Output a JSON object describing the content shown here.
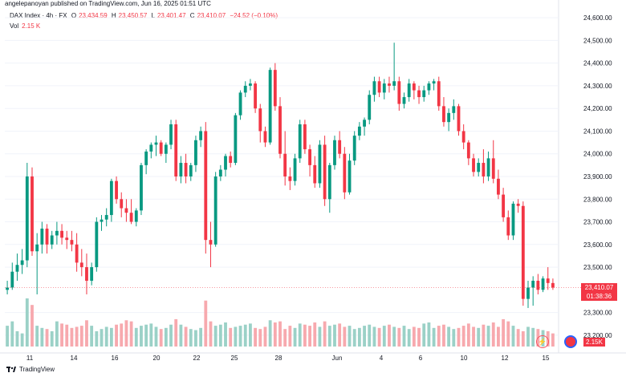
{
  "header": {
    "publisher_line": "angelepanoyan published on TradingView.com, Jun 16, 2025 01:51 UTC",
    "symbol": "DAX Index · 4h · FX",
    "open_label": "O",
    "open": "23,434.59",
    "high_label": "H",
    "high": "23,450.57",
    "low_label": "L",
    "low": "23,401.47",
    "close_label": "C",
    "close": "23,410.07",
    "change": "−24.52 (−0.10%)",
    "vol_label": "Vol",
    "vol": "2.15 K"
  },
  "price_tag": {
    "price": "23,410.07",
    "countdown": "01:38:36"
  },
  "vol_tag": "2.15K",
  "footer": {
    "brand": "TradingView"
  },
  "colors": {
    "up": "#089981",
    "down": "#f23645",
    "up_vol": "#9bd1c7",
    "down_vol": "#f7a9ae"
  },
  "chart_data": {
    "type": "candlestick",
    "ylim": [
      23150,
      24650
    ],
    "y_ticks": [
      "24,600.00",
      "24,500.00",
      "24,400.00",
      "24,300.00",
      "24,200.00",
      "24,100.00",
      "24,000.00",
      "23,900.00",
      "23,800.00",
      "23,700.00",
      "23,600.00",
      "23,500.00",
      "23,300.00",
      "23,200.00"
    ],
    "x_ticks": [
      "11",
      "14",
      "16",
      "20",
      "22",
      "25",
      "28",
      "Jun",
      "4",
      "6",
      "10",
      "12",
      "15"
    ],
    "ohlc": [
      [
        23400,
        23440,
        23380,
        23410
      ],
      [
        23410,
        23520,
        23400,
        23480
      ],
      [
        23480,
        23560,
        23440,
        23510
      ],
      [
        23510,
        23580,
        23470,
        23530
      ],
      [
        23530,
        23960,
        23500,
        23900
      ],
      [
        23900,
        23940,
        23550,
        23570
      ],
      [
        23570,
        23650,
        23380,
        23600
      ],
      [
        23600,
        23700,
        23560,
        23670
      ],
      [
        23670,
        23690,
        23560,
        23600
      ],
      [
        23600,
        23660,
        23580,
        23640
      ],
      [
        23640,
        23700,
        23600,
        23660
      ],
      [
        23660,
        23690,
        23600,
        23630
      ],
      [
        23630,
        23660,
        23580,
        23620
      ],
      [
        23620,
        23660,
        23570,
        23600
      ],
      [
        23600,
        23650,
        23480,
        23520
      ],
      [
        23520,
        23580,
        23460,
        23500
      ],
      [
        23500,
        23560,
        23380,
        23440
      ],
      [
        23440,
        23520,
        23420,
        23500
      ],
      [
        23500,
        23720,
        23480,
        23700
      ],
      [
        23700,
        23730,
        23660,
        23710
      ],
      [
        23710,
        23760,
        23680,
        23730
      ],
      [
        23730,
        23890,
        23700,
        23880
      ],
      [
        23880,
        23900,
        23780,
        23800
      ],
      [
        23800,
        23830,
        23720,
        23760
      ],
      [
        23760,
        23800,
        23700,
        23740
      ],
      [
        23740,
        23800,
        23690,
        23700
      ],
      [
        23700,
        23760,
        23680,
        23750
      ],
      [
        23750,
        23960,
        23730,
        23950
      ],
      [
        23950,
        24020,
        23910,
        24010
      ],
      [
        24010,
        24050,
        23980,
        24040
      ],
      [
        24040,
        24080,
        23990,
        24050
      ],
      [
        24050,
        24060,
        23990,
        24000
      ],
      [
        24000,
        24050,
        23960,
        24040
      ],
      [
        24040,
        24150,
        24020,
        24130
      ],
      [
        24130,
        24150,
        23880,
        23900
      ],
      [
        23900,
        23990,
        23870,
        23960
      ],
      [
        23960,
        24000,
        23870,
        23900
      ],
      [
        23900,
        23960,
        23880,
        23950
      ],
      [
        23950,
        24080,
        23920,
        24060
      ],
      [
        24060,
        24120,
        24030,
        24100
      ],
      [
        24100,
        24140,
        23560,
        23620
      ],
      [
        23620,
        23700,
        23500,
        23600
      ],
      [
        23600,
        23920,
        23590,
        23900
      ],
      [
        23900,
        23950,
        23880,
        23930
      ],
      [
        23930,
        24000,
        23900,
        23990
      ],
      [
        23990,
        24010,
        23940,
        23960
      ],
      [
        23960,
        24180,
        23950,
        24170
      ],
      [
        24170,
        24280,
        24150,
        24270
      ],
      [
        24270,
        24320,
        24250,
        24300
      ],
      [
        24300,
        24330,
        24280,
        24310
      ],
      [
        24310,
        24320,
        24180,
        24200
      ],
      [
        24200,
        24220,
        24050,
        24100
      ],
      [
        24100,
        24120,
        24030,
        24050
      ],
      [
        24050,
        24380,
        24040,
        24370
      ],
      [
        24370,
        24400,
        24190,
        24210
      ],
      [
        24210,
        24250,
        23980,
        24000
      ],
      [
        24000,
        24100,
        23860,
        23900
      ],
      [
        23900,
        23940,
        23840,
        23880
      ],
      [
        23880,
        24000,
        23860,
        23980
      ],
      [
        23980,
        24150,
        23960,
        24130
      ],
      [
        24130,
        24150,
        24000,
        24020
      ],
      [
        24020,
        24040,
        23900,
        23950
      ],
      [
        23950,
        23990,
        23850,
        23870
      ],
      [
        23870,
        24060,
        23850,
        24040
      ],
      [
        24040,
        24080,
        23770,
        23800
      ],
      [
        23800,
        23960,
        23740,
        23950
      ],
      [
        23950,
        24080,
        23930,
        24060
      ],
      [
        24060,
        24100,
        23980,
        24000
      ],
      [
        24000,
        24030,
        23800,
        23830
      ],
      [
        23830,
        24000,
        23820,
        23970
      ],
      [
        23970,
        24100,
        23950,
        24080
      ],
      [
        24080,
        24140,
        24060,
        24120
      ],
      [
        24120,
        24160,
        24080,
        24150
      ],
      [
        24150,
        24280,
        24130,
        24260
      ],
      [
        24260,
        24340,
        24230,
        24320
      ],
      [
        24320,
        24340,
        24250,
        24270
      ],
      [
        24270,
        24330,
        24240,
        24310
      ],
      [
        24310,
        24340,
        24270,
        24300
      ],
      [
        24300,
        24490,
        24280,
        24320
      ],
      [
        24320,
        24340,
        24190,
        24220
      ],
      [
        24220,
        24270,
        24200,
        24250
      ],
      [
        24250,
        24330,
        24230,
        24310
      ],
      [
        24310,
        24320,
        24240,
        24280
      ],
      [
        24280,
        24300,
        24220,
        24250
      ],
      [
        24250,
        24300,
        24230,
        24280
      ],
      [
        24280,
        24320,
        24260,
        24310
      ],
      [
        24310,
        24330,
        24280,
        24320
      ],
      [
        24320,
        24340,
        24190,
        24210
      ],
      [
        24210,
        24250,
        24120,
        24140
      ],
      [
        24140,
        24200,
        24100,
        24180
      ],
      [
        24180,
        24240,
        24150,
        24210
      ],
      [
        24210,
        24220,
        24080,
        24100
      ],
      [
        24100,
        24130,
        24020,
        24050
      ],
      [
        24050,
        24060,
        23950,
        23980
      ],
      [
        23980,
        24000,
        23900,
        23920
      ],
      [
        23920,
        23980,
        23900,
        23960
      ],
      [
        23960,
        24020,
        23870,
        23900
      ],
      [
        23900,
        24010,
        23880,
        23980
      ],
      [
        23980,
        24060,
        23870,
        23890
      ],
      [
        23890,
        23930,
        23800,
        23820
      ],
      [
        23820,
        23850,
        23700,
        23720
      ],
      [
        23720,
        23750,
        23620,
        23640
      ],
      [
        23640,
        23790,
        23620,
        23780
      ],
      [
        23780,
        23800,
        23740,
        23770
      ],
      [
        23770,
        23790,
        23330,
        23360
      ],
      [
        23360,
        23440,
        23320,
        23410
      ],
      [
        23410,
        23460,
        23330,
        23440
      ],
      [
        23440,
        23470,
        23380,
        23400
      ],
      [
        23400,
        23460,
        23390,
        23450
      ],
      [
        23450,
        23500,
        23400,
        23430
      ],
      [
        23430,
        23450,
        23400,
        23410
      ]
    ],
    "volume": [
      190,
      230,
      140,
      120,
      440,
      380,
      190,
      170,
      160,
      140,
      230,
      210,
      200,
      170,
      180,
      190,
      240,
      190,
      140,
      160,
      180,
      170,
      200,
      210,
      240,
      230,
      170,
      190,
      200,
      210,
      180,
      160,
      170,
      200,
      250,
      200,
      180,
      160,
      150,
      170,
      420,
      230,
      190,
      200,
      220,
      170,
      180,
      190,
      200,
      210,
      170,
      160,
      180,
      240,
      220,
      230,
      160,
      190,
      170,
      210,
      200,
      190,
      220,
      180,
      230,
      190,
      200,
      210,
      180,
      190,
      160,
      170,
      190,
      200,
      180,
      170,
      190,
      200,
      180,
      170,
      190,
      160,
      180,
      170,
      210,
      220,
      170,
      190,
      200,
      180,
      160,
      170,
      190,
      210,
      180,
      170,
      200,
      190,
      220,
      180,
      250,
      230,
      190,
      160,
      140,
      180,
      170,
      160,
      150,
      140,
      120
    ]
  }
}
